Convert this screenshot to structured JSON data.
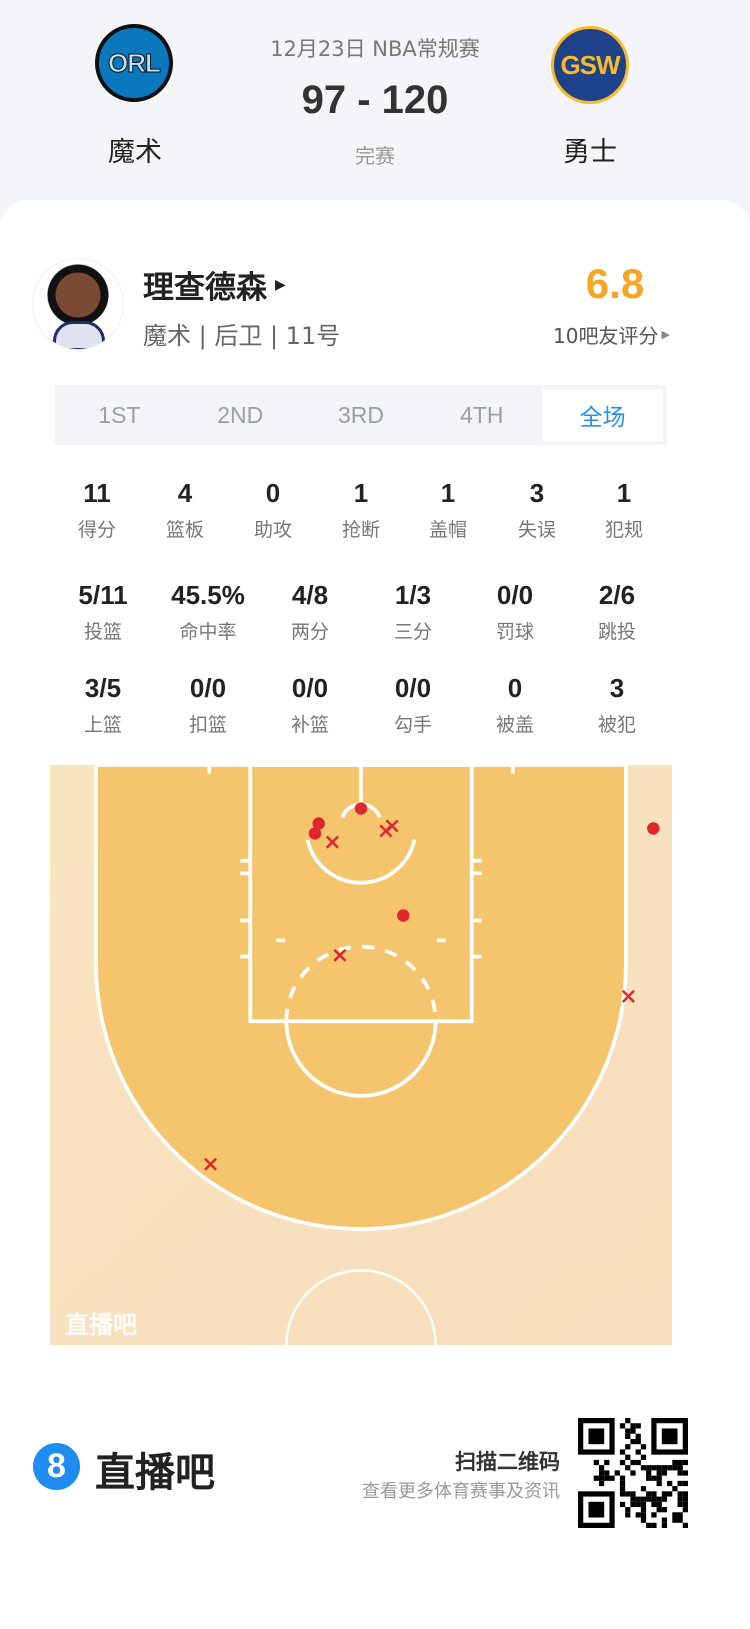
{
  "game": {
    "date_league": "12月23日 NBA常规赛",
    "score": "97 - 120",
    "status": "完赛",
    "home": {
      "abbr": "ORL",
      "name": "魔术",
      "color": "#0b77bd"
    },
    "away": {
      "abbr": "GSW",
      "name": "勇士",
      "color": "#1d428a",
      "accent": "#fdb927"
    }
  },
  "player": {
    "name": "理查德森",
    "info": "魔术 | 后卫 | 11号",
    "rating": "6.8",
    "rating_label": "10吧友评分",
    "rating_color": "#f5a623"
  },
  "tabs": [
    {
      "label": "1ST"
    },
    {
      "label": "2ND"
    },
    {
      "label": "3RD"
    },
    {
      "label": "4TH"
    },
    {
      "label": "全场",
      "active": true
    }
  ],
  "stats_row1": [
    {
      "v": "11",
      "l": "得分"
    },
    {
      "v": "4",
      "l": "篮板"
    },
    {
      "v": "0",
      "l": "助攻"
    },
    {
      "v": "1",
      "l": "抢断"
    },
    {
      "v": "1",
      "l": "盖帽"
    },
    {
      "v": "3",
      "l": "失误"
    },
    {
      "v": "1",
      "l": "犯规"
    }
  ],
  "stats_row2": [
    {
      "v": "5/11",
      "l": "投篮"
    },
    {
      "v": "45.5%",
      "l": "命中率"
    },
    {
      "v": "4/8",
      "l": "两分"
    },
    {
      "v": "1/3",
      "l": "三分"
    },
    {
      "v": "0/0",
      "l": "罚球"
    },
    {
      "v": "2/6",
      "l": "跳投"
    }
  ],
  "stats_row3": [
    {
      "v": "3/5",
      "l": "上篮"
    },
    {
      "v": "0/0",
      "l": "扣篮"
    },
    {
      "v": "0/0",
      "l": "补篮"
    },
    {
      "v": "0/0",
      "l": "勾手"
    },
    {
      "v": "0",
      "l": "被盖"
    },
    {
      "v": "3",
      "l": "被犯"
    }
  ],
  "shot_chart": {
    "watermark": "直播吧",
    "units": "feet (x from left sideline, y from baseline)",
    "made_color": "#e0262f",
    "shots": [
      {
        "x": 25.0,
        "y": 3.5,
        "made": true
      },
      {
        "x": 21.6,
        "y": 4.7,
        "made": true
      },
      {
        "x": 21.3,
        "y": 5.5,
        "made": true
      },
      {
        "x": 28.4,
        "y": 12.1,
        "made": true
      },
      {
        "x": 48.5,
        "y": 5.1,
        "made": true
      },
      {
        "x": 22.7,
        "y": 6.2,
        "made": false
      },
      {
        "x": 27.5,
        "y": 4.9,
        "made": false
      },
      {
        "x": 27.0,
        "y": 5.3,
        "made": false
      },
      {
        "x": 23.3,
        "y": 15.3,
        "made": false
      },
      {
        "x": 46.5,
        "y": 18.6,
        "made": false
      },
      {
        "x": 12.9,
        "y": 32.1,
        "made": false
      }
    ]
  },
  "footer": {
    "brand": "直播吧",
    "brand_badge": "8",
    "scan_title": "扫描二维码",
    "scan_sub": "查看更多体育赛事及资讯"
  }
}
